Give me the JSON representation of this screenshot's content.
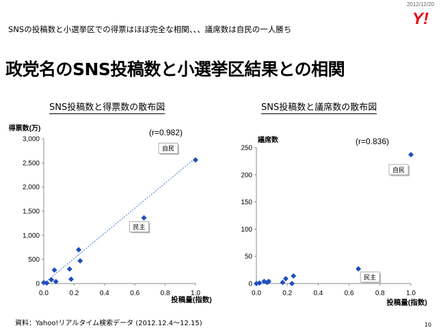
{
  "header": {
    "date": "2012/12/20",
    "logo_text": "Y!",
    "headline": "SNSの投稿数と小選挙区での得票はほぼ完全な相関、、、議席数は自民の一人勝ち",
    "title": "政党名のSNS投稿数と小選挙区結果との相関"
  },
  "footer": {
    "source": "資料：Yahoo!リアルタイム検索データ (2012.12.4〜12.15)",
    "page_number": "10"
  },
  "colors": {
    "marker": "#1f4fc0",
    "trendline": "#3a6fd0",
    "logo": "#e60012"
  },
  "chart_data": [
    {
      "type": "scatter",
      "title": "SNS投稿数と得票数の散布図",
      "ylabel": "得票数(万)",
      "xlabel": "投稿量(指数)",
      "xlim": [
        0,
        1.0
      ],
      "ylim": [
        0,
        3000
      ],
      "xticks": [
        0.0,
        0.2,
        0.4,
        0.6,
        0.8,
        1.0
      ],
      "xtick_labels": [
        "0.0",
        "0.2",
        "0.4",
        "0.6",
        "0.8",
        "1.0"
      ],
      "yticks": [
        0,
        500,
        1000,
        1500,
        2000,
        2500,
        3000
      ],
      "ytick_labels": [
        "0",
        "500",
        "1,000",
        "1,500",
        "2,000",
        "2,500",
        "3,000"
      ],
      "grid": false,
      "correlation_label": "(r=0.982)",
      "trendline": {
        "x": [
          0.0,
          1.0
        ],
        "y": [
          0,
          2600
        ]
      },
      "points": [
        {
          "x": 0.0,
          "y": 20
        },
        {
          "x": 0.02,
          "y": 10
        },
        {
          "x": 0.05,
          "y": 80
        },
        {
          "x": 0.07,
          "y": 280
        },
        {
          "x": 0.08,
          "y": 40
        },
        {
          "x": 0.17,
          "y": 300
        },
        {
          "x": 0.18,
          "y": 90
        },
        {
          "x": 0.23,
          "y": 700
        },
        {
          "x": 0.24,
          "y": 470
        },
        {
          "x": 0.66,
          "y": 1360
        },
        {
          "x": 1.0,
          "y": 2560
        }
      ],
      "annotations": [
        {
          "text": "自民",
          "x": 1.0,
          "y": 2560
        },
        {
          "text": "民主",
          "x": 0.66,
          "y": 1360
        }
      ]
    },
    {
      "type": "scatter",
      "title": "SNS投稿数と議席数の散布図",
      "ylabel": "議席数",
      "xlabel": "投稿量(指数)",
      "xlim": [
        0,
        1.0
      ],
      "ylim": [
        0,
        250
      ],
      "xticks": [
        0.0,
        0.2,
        0.4,
        0.6,
        0.8,
        1.0
      ],
      "xtick_labels": [
        "0.0",
        "0.2",
        "0.4",
        "0.6",
        "0.8",
        "1.0"
      ],
      "yticks": [
        0,
        50,
        100,
        150,
        200,
        250
      ],
      "ytick_labels": [
        "0",
        "50",
        "100",
        "150",
        "200",
        "250"
      ],
      "grid": false,
      "correlation_label": "(r=0.836)",
      "points": [
        {
          "x": 0.0,
          "y": 0
        },
        {
          "x": 0.02,
          "y": 1
        },
        {
          "x": 0.05,
          "y": 4
        },
        {
          "x": 0.07,
          "y": 2
        },
        {
          "x": 0.08,
          "y": 4
        },
        {
          "x": 0.17,
          "y": 2
        },
        {
          "x": 0.19,
          "y": 9
        },
        {
          "x": 0.23,
          "y": 0
        },
        {
          "x": 0.24,
          "y": 14
        },
        {
          "x": 0.66,
          "y": 27
        },
        {
          "x": 1.0,
          "y": 237
        }
      ],
      "annotations": [
        {
          "text": "自民",
          "x": 1.0,
          "y": 237
        },
        {
          "text": "民主",
          "x": 0.66,
          "y": 27
        }
      ]
    }
  ]
}
